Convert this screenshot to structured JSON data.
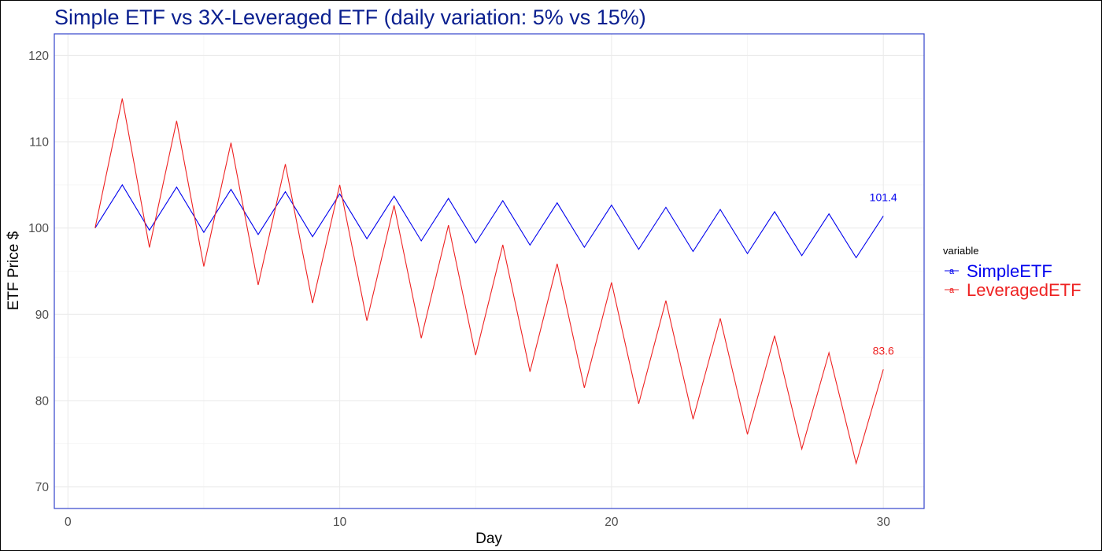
{
  "chart_data": {
    "type": "line",
    "title": "Simple ETF vs 3X-Leveraged ETF (daily variation: 5% vs 15%)",
    "xlabel": "Day",
    "ylabel": "ETF Price $",
    "xlim": [
      -0.5,
      31.5
    ],
    "ylim": [
      67.5,
      122.5
    ],
    "x_ticks": [
      0,
      10,
      20,
      30
    ],
    "y_ticks": [
      70,
      80,
      90,
      100,
      110,
      120
    ],
    "grid": true,
    "legend": {
      "title": "variable",
      "position": "right",
      "key_glyph": "a"
    },
    "x": [
      1,
      2,
      3,
      4,
      5,
      6,
      7,
      8,
      9,
      10,
      11,
      12,
      13,
      14,
      15,
      16,
      17,
      18,
      19,
      20,
      21,
      22,
      23,
      24,
      25,
      26,
      27,
      28,
      29,
      30
    ],
    "series": [
      {
        "name": "SimpleETF",
        "color": "#0000ee",
        "values": [
          100.0,
          105.0,
          99.75,
          104.74,
          99.5,
          104.48,
          99.25,
          104.21,
          99.0,
          103.95,
          98.76,
          103.69,
          98.51,
          103.43,
          98.26,
          103.17,
          98.02,
          102.92,
          97.77,
          102.66,
          97.53,
          102.4,
          97.28,
          102.15,
          97.04,
          101.89,
          96.8,
          101.64,
          96.56,
          101.39
        ],
        "end_label": "101.4"
      },
      {
        "name": "LeveragedETF",
        "color": "#ee2222",
        "values": [
          100.0,
          115.0,
          97.75,
          112.41,
          95.55,
          109.88,
          93.4,
          107.41,
          91.3,
          105.0,
          89.25,
          102.63,
          87.24,
          100.32,
          85.27,
          98.06,
          83.35,
          95.86,
          81.48,
          93.7,
          79.64,
          91.59,
          77.85,
          89.53,
          76.1,
          87.52,
          74.39,
          85.55,
          72.72,
          83.62
        ],
        "end_label": "83.6"
      }
    ],
    "panel_border_color": "#3344cc",
    "title_color": "#0a1f8f"
  }
}
